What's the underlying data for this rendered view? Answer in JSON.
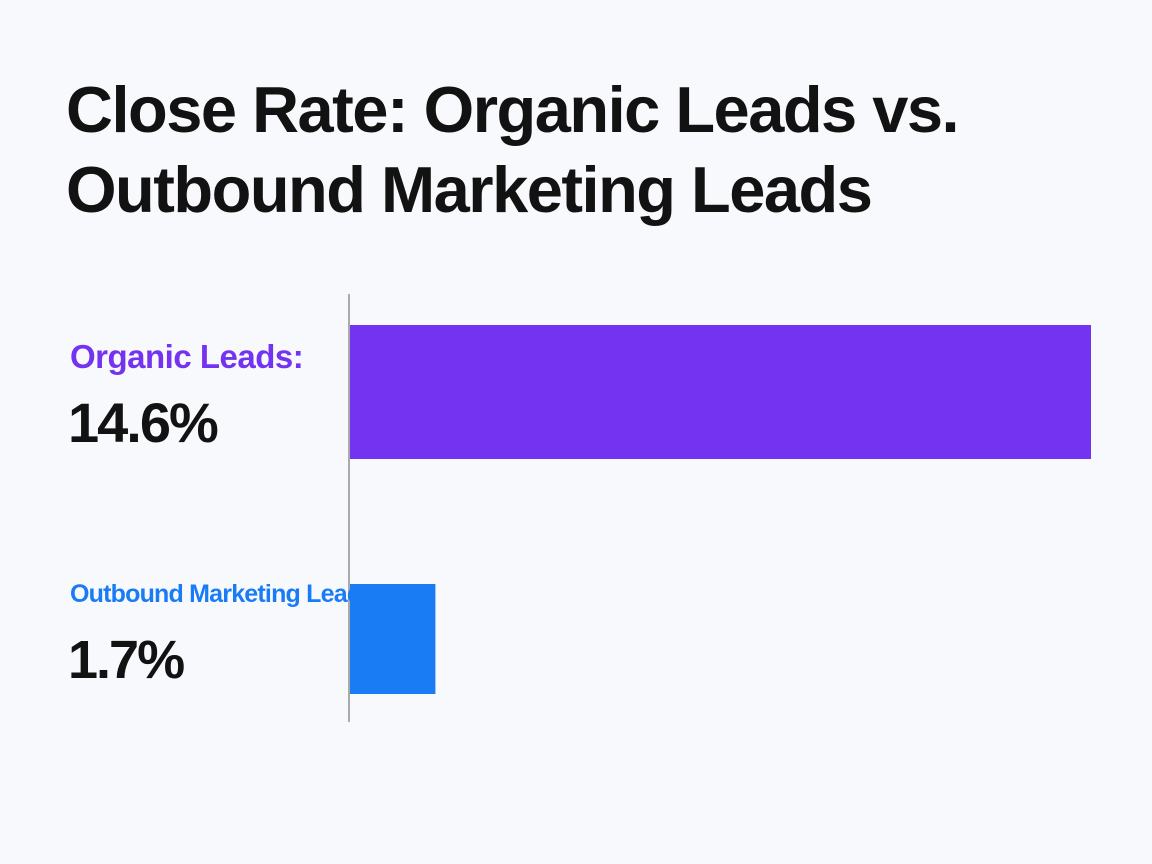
{
  "chart_data": {
    "type": "bar",
    "orientation": "horizontal",
    "title": "Close Rate: Organic Leads vs. Outbound Marketing Leads",
    "categories": [
      "Organic Leads:",
      "Outbound Marketing Leads:"
    ],
    "values": [
      14.6,
      1.7
    ],
    "value_labels": [
      "14.6%",
      "1.7%"
    ],
    "unit": "%",
    "xlim": [
      0,
      14.6
    ],
    "grid": false,
    "legend": "none",
    "colors": [
      "#7433f0",
      "#1a7cf5"
    ],
    "baseline_color": "#aaaaaa"
  }
}
